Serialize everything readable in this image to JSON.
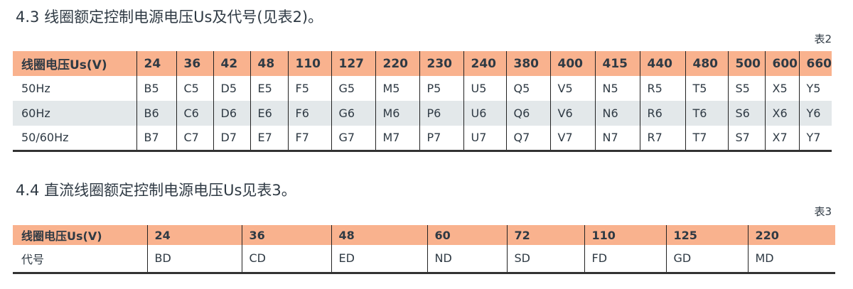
{
  "section1": {
    "title": "4.3 线圈额定控制电源电压Us及代号(见表2)。",
    "caption": "表2",
    "header": [
      "线圈电压Us(V)",
      "24",
      "36",
      "42",
      "48",
      "110",
      "127",
      "220",
      "230",
      "240",
      "380",
      "400",
      "415",
      "440",
      "480",
      "500",
      "600",
      "660"
    ],
    "rows": [
      [
        "50Hz",
        "B5",
        "C5",
        "D5",
        "E5",
        "F5",
        "G5",
        "M5",
        "P5",
        "U5",
        "Q5",
        "V5",
        "N5",
        "R5",
        "T5",
        "S5",
        "X5",
        "Y5"
      ],
      [
        "60Hz",
        "B6",
        "C6",
        "D6",
        "E6",
        "F6",
        "G6",
        "M6",
        "P6",
        "U6",
        "Q6",
        "V6",
        "N6",
        "R6",
        "T6",
        "S6",
        "X6",
        "Y6"
      ],
      [
        "50/60Hz",
        "B7",
        "C7",
        "D7",
        "E7",
        "F7",
        "G7",
        "M7",
        "P7",
        "U7",
        "Q7",
        "V7",
        "N7",
        "R7",
        "T7",
        "S7",
        "X7",
        "Y7"
      ]
    ]
  },
  "section2": {
    "title": "4.4 直流线圈额定控制电源电压Us见表3。",
    "caption": "表3",
    "header": [
      "线圈电压Us(V)",
      "24",
      "36",
      "48",
      "60",
      "72",
      "110",
      "125",
      "220"
    ],
    "rows": [
      [
        "代号",
        "BD",
        "CD",
        "ED",
        "ND",
        "SD",
        "FD",
        "GD",
        "MD"
      ]
    ]
  },
  "colors": {
    "header_bg": "#f9b28e",
    "alt_row_bg": "#e3e8ea"
  }
}
